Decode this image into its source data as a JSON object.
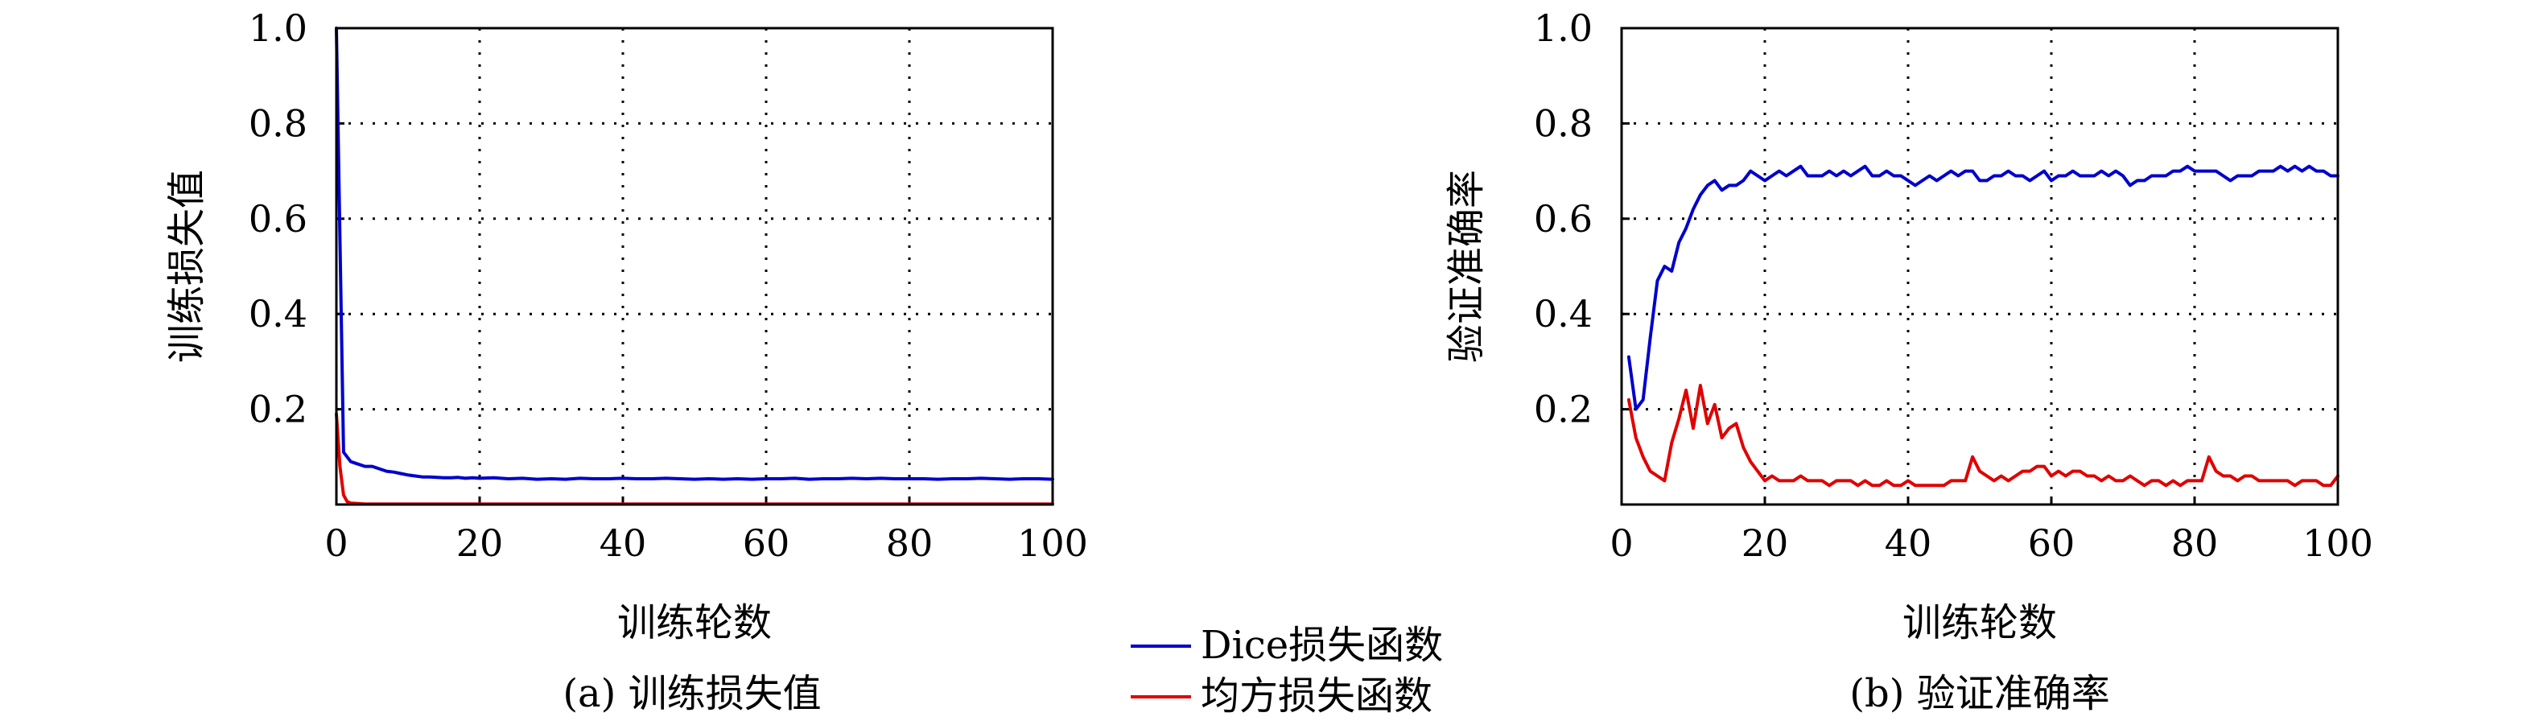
{
  "chart_data": [
    {
      "type": "line",
      "caption": "(a) 训练损失值",
      "xlabel": "训练轮数",
      "ylabel": "训练损失值",
      "xlim": [
        0,
        100
      ],
      "ylim": [
        0,
        1
      ],
      "xticks": [
        "0",
        "20",
        "40",
        "60",
        "80",
        "100"
      ],
      "yticks": [
        "0.2",
        "0.4",
        "0.6",
        "0.8",
        "1.0"
      ],
      "grid": true,
      "series": [
        {
          "name": "Dice损失函数",
          "color": "#0000cc",
          "x": [
            0,
            1,
            2,
            3,
            4,
            5,
            6,
            7,
            8,
            9,
            10,
            11,
            12,
            13,
            14,
            15,
            16,
            17,
            18,
            19,
            20,
            22,
            24,
            26,
            28,
            30,
            32,
            34,
            36,
            38,
            40,
            42,
            44,
            46,
            48,
            50,
            52,
            54,
            56,
            58,
            60,
            62,
            64,
            66,
            68,
            70,
            72,
            74,
            76,
            78,
            80,
            82,
            84,
            86,
            88,
            90,
            92,
            94,
            96,
            98,
            100
          ],
          "y": [
            1.0,
            0.11,
            0.09,
            0.085,
            0.08,
            0.08,
            0.075,
            0.07,
            0.068,
            0.065,
            0.062,
            0.06,
            0.058,
            0.058,
            0.057,
            0.056,
            0.056,
            0.057,
            0.055,
            0.056,
            0.055,
            0.056,
            0.054,
            0.055,
            0.053,
            0.054,
            0.053,
            0.055,
            0.054,
            0.054,
            0.055,
            0.054,
            0.054,
            0.055,
            0.054,
            0.053,
            0.054,
            0.053,
            0.054,
            0.053,
            0.054,
            0.054,
            0.055,
            0.053,
            0.054,
            0.054,
            0.055,
            0.054,
            0.055,
            0.054,
            0.054,
            0.054,
            0.053,
            0.054,
            0.054,
            0.055,
            0.054,
            0.053,
            0.054,
            0.054,
            0.053
          ]
        },
        {
          "name": "均方损失函数",
          "color": "#e00000",
          "x": [
            0,
            0.5,
            1,
            1.5,
            2,
            3,
            4,
            6,
            10,
            20,
            40,
            60,
            80,
            100
          ],
          "y": [
            0.19,
            0.08,
            0.02,
            0.006,
            0.003,
            0.002,
            0.001,
            0.001,
            0.001,
            0.001,
            0.001,
            0.001,
            0.001,
            0.001
          ]
        }
      ]
    },
    {
      "type": "line",
      "caption": "(b) 验证准确率",
      "xlabel": "训练轮数",
      "ylabel": "验证准确率",
      "xlim": [
        0,
        100
      ],
      "ylim": [
        0,
        1
      ],
      "xticks": [
        "0",
        "20",
        "40",
        "60",
        "80",
        "100"
      ],
      "yticks": [
        "0.2",
        "0.4",
        "0.6",
        "0.8",
        "1.0"
      ],
      "grid": true,
      "series": [
        {
          "name": "Dice损失函数",
          "color": "#0000cc",
          "x": [
            1,
            2,
            3,
            4,
            5,
            6,
            7,
            8,
            9,
            10,
            11,
            12,
            13,
            14,
            15,
            16,
            17,
            18,
            19,
            20,
            21,
            22,
            23,
            24,
            25,
            26,
            27,
            28,
            29,
            30,
            31,
            32,
            33,
            34,
            35,
            36,
            37,
            38,
            39,
            40,
            41,
            42,
            43,
            44,
            45,
            46,
            47,
            48,
            49,
            50,
            51,
            52,
            53,
            54,
            55,
            56,
            57,
            58,
            59,
            60,
            61,
            62,
            63,
            64,
            65,
            66,
            67,
            68,
            69,
            70,
            71,
            72,
            73,
            74,
            75,
            76,
            77,
            78,
            79,
            80,
            81,
            82,
            83,
            84,
            85,
            86,
            87,
            88,
            89,
            90,
            91,
            92,
            93,
            94,
            95,
            96,
            97,
            98,
            99,
            100
          ],
          "y": [
            0.31,
            0.2,
            0.22,
            0.35,
            0.47,
            0.5,
            0.49,
            0.55,
            0.58,
            0.62,
            0.65,
            0.67,
            0.68,
            0.66,
            0.67,
            0.67,
            0.68,
            0.7,
            0.69,
            0.68,
            0.69,
            0.7,
            0.69,
            0.7,
            0.71,
            0.69,
            0.69,
            0.69,
            0.7,
            0.69,
            0.7,
            0.69,
            0.7,
            0.71,
            0.69,
            0.69,
            0.7,
            0.69,
            0.69,
            0.68,
            0.67,
            0.68,
            0.69,
            0.68,
            0.69,
            0.7,
            0.69,
            0.7,
            0.7,
            0.68,
            0.68,
            0.69,
            0.69,
            0.7,
            0.69,
            0.69,
            0.68,
            0.69,
            0.7,
            0.68,
            0.69,
            0.69,
            0.7,
            0.69,
            0.69,
            0.69,
            0.7,
            0.69,
            0.7,
            0.69,
            0.67,
            0.68,
            0.68,
            0.69,
            0.69,
            0.69,
            0.7,
            0.7,
            0.71,
            0.7,
            0.7,
            0.7,
            0.7,
            0.69,
            0.68,
            0.69,
            0.69,
            0.69,
            0.7,
            0.7,
            0.7,
            0.71,
            0.7,
            0.71,
            0.7,
            0.71,
            0.7,
            0.7,
            0.69,
            0.69
          ]
        },
        {
          "name": "均方损失函数",
          "color": "#e00000",
          "x": [
            1,
            2,
            3,
            4,
            5,
            6,
            7,
            8,
            9,
            10,
            11,
            12,
            13,
            14,
            15,
            16,
            17,
            18,
            19,
            20,
            21,
            22,
            23,
            24,
            25,
            26,
            27,
            28,
            29,
            30,
            31,
            32,
            33,
            34,
            35,
            36,
            37,
            38,
            39,
            40,
            41,
            42,
            43,
            44,
            45,
            46,
            47,
            48,
            49,
            50,
            51,
            52,
            53,
            54,
            55,
            56,
            57,
            58,
            59,
            60,
            61,
            62,
            63,
            64,
            65,
            66,
            67,
            68,
            69,
            70,
            71,
            72,
            73,
            74,
            75,
            76,
            77,
            78,
            79,
            80,
            81,
            82,
            83,
            84,
            85,
            86,
            87,
            88,
            89,
            90,
            91,
            92,
            93,
            94,
            95,
            96,
            97,
            98,
            99,
            100
          ],
          "y": [
            0.22,
            0.14,
            0.1,
            0.07,
            0.06,
            0.05,
            0.13,
            0.18,
            0.24,
            0.16,
            0.25,
            0.17,
            0.21,
            0.14,
            0.16,
            0.17,
            0.12,
            0.09,
            0.07,
            0.05,
            0.06,
            0.05,
            0.05,
            0.05,
            0.06,
            0.05,
            0.05,
            0.05,
            0.04,
            0.05,
            0.05,
            0.05,
            0.04,
            0.05,
            0.04,
            0.04,
            0.05,
            0.04,
            0.04,
            0.05,
            0.04,
            0.04,
            0.04,
            0.04,
            0.04,
            0.05,
            0.05,
            0.05,
            0.1,
            0.07,
            0.06,
            0.05,
            0.06,
            0.05,
            0.06,
            0.07,
            0.07,
            0.08,
            0.08,
            0.06,
            0.07,
            0.06,
            0.07,
            0.07,
            0.06,
            0.06,
            0.05,
            0.06,
            0.05,
            0.05,
            0.06,
            0.05,
            0.04,
            0.05,
            0.05,
            0.04,
            0.05,
            0.04,
            0.05,
            0.05,
            0.05,
            0.1,
            0.07,
            0.06,
            0.06,
            0.05,
            0.06,
            0.06,
            0.05,
            0.05,
            0.05,
            0.05,
            0.05,
            0.04,
            0.05,
            0.05,
            0.05,
            0.04,
            0.04,
            0.06
          ]
        }
      ]
    }
  ],
  "legend": {
    "placement": "bottom-center",
    "items": [
      {
        "label": "Dice损失函数",
        "color": "#0000cc"
      },
      {
        "label": "均方损失函数",
        "color": "#e00000"
      }
    ]
  }
}
